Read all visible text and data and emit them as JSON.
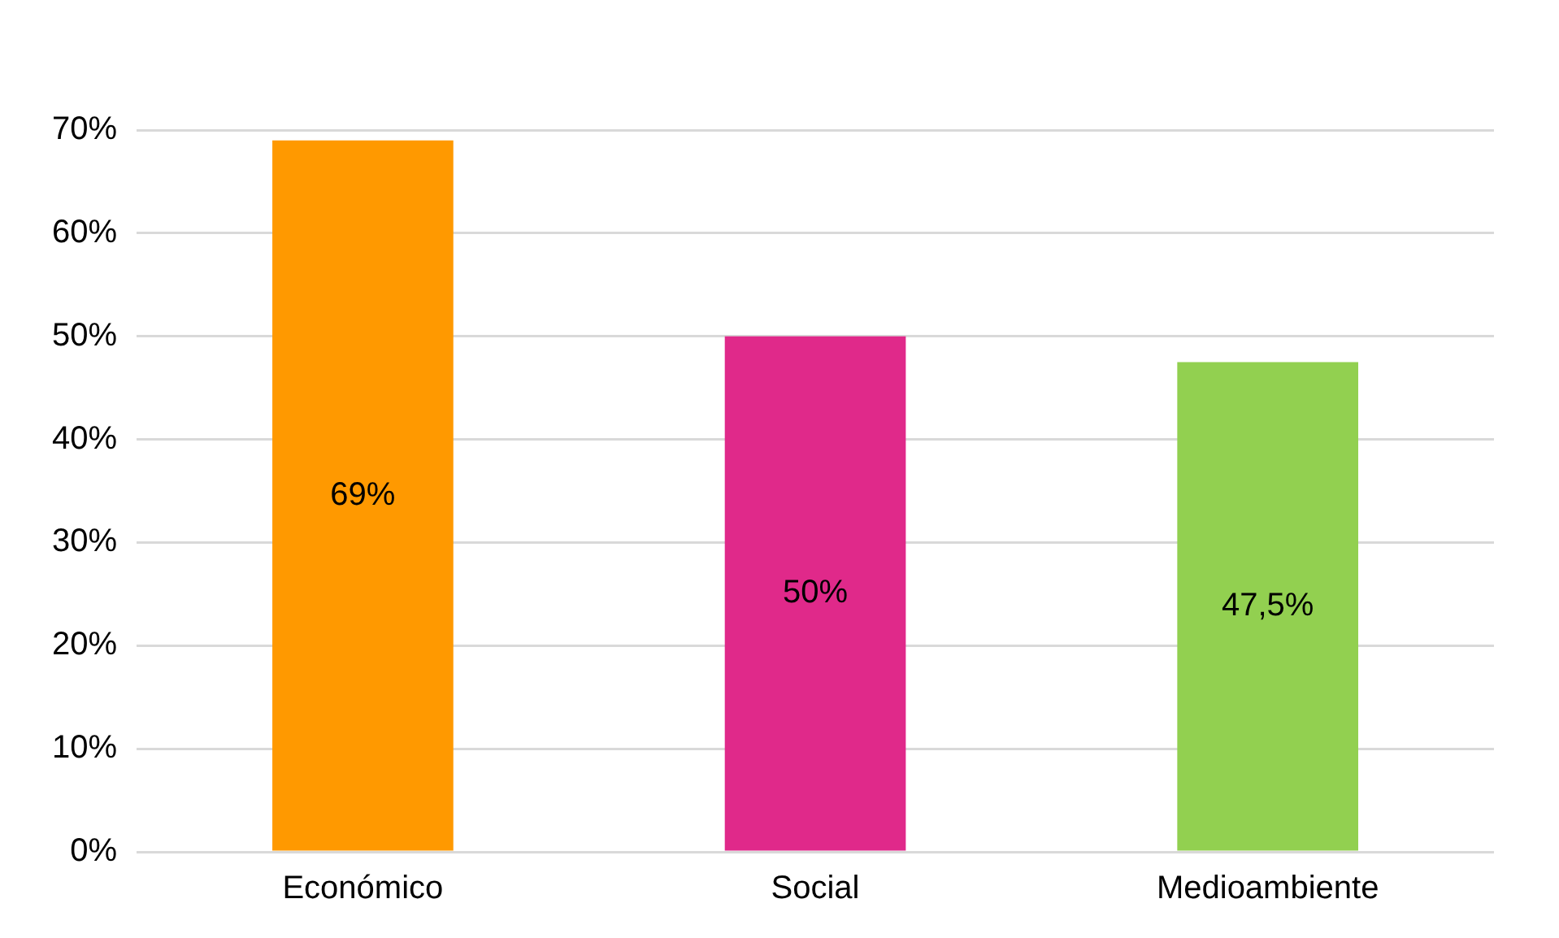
{
  "chart_data": {
    "type": "bar",
    "categories": [
      "Económico",
      "Social",
      "Medioambiente"
    ],
    "values": [
      69,
      50,
      47.5
    ],
    "colors": [
      "#ff9900",
      "#e0298a",
      "#92d050"
    ],
    "value_labels": [
      "69%",
      "50%",
      "47,5%"
    ],
    "ylim": [
      0,
      70
    ],
    "yticks": [
      {
        "value": 0,
        "label": "0%"
      },
      {
        "value": 10,
        "label": "10%"
      },
      {
        "value": 20,
        "label": "20%"
      },
      {
        "value": 30,
        "label": "30%"
      },
      {
        "value": 40,
        "label": "40%"
      },
      {
        "value": 50,
        "label": "50%"
      },
      {
        "value": 60,
        "label": "60%"
      },
      {
        "value": 70,
        "label": "70%"
      }
    ],
    "grid": "y",
    "legend": false
  }
}
